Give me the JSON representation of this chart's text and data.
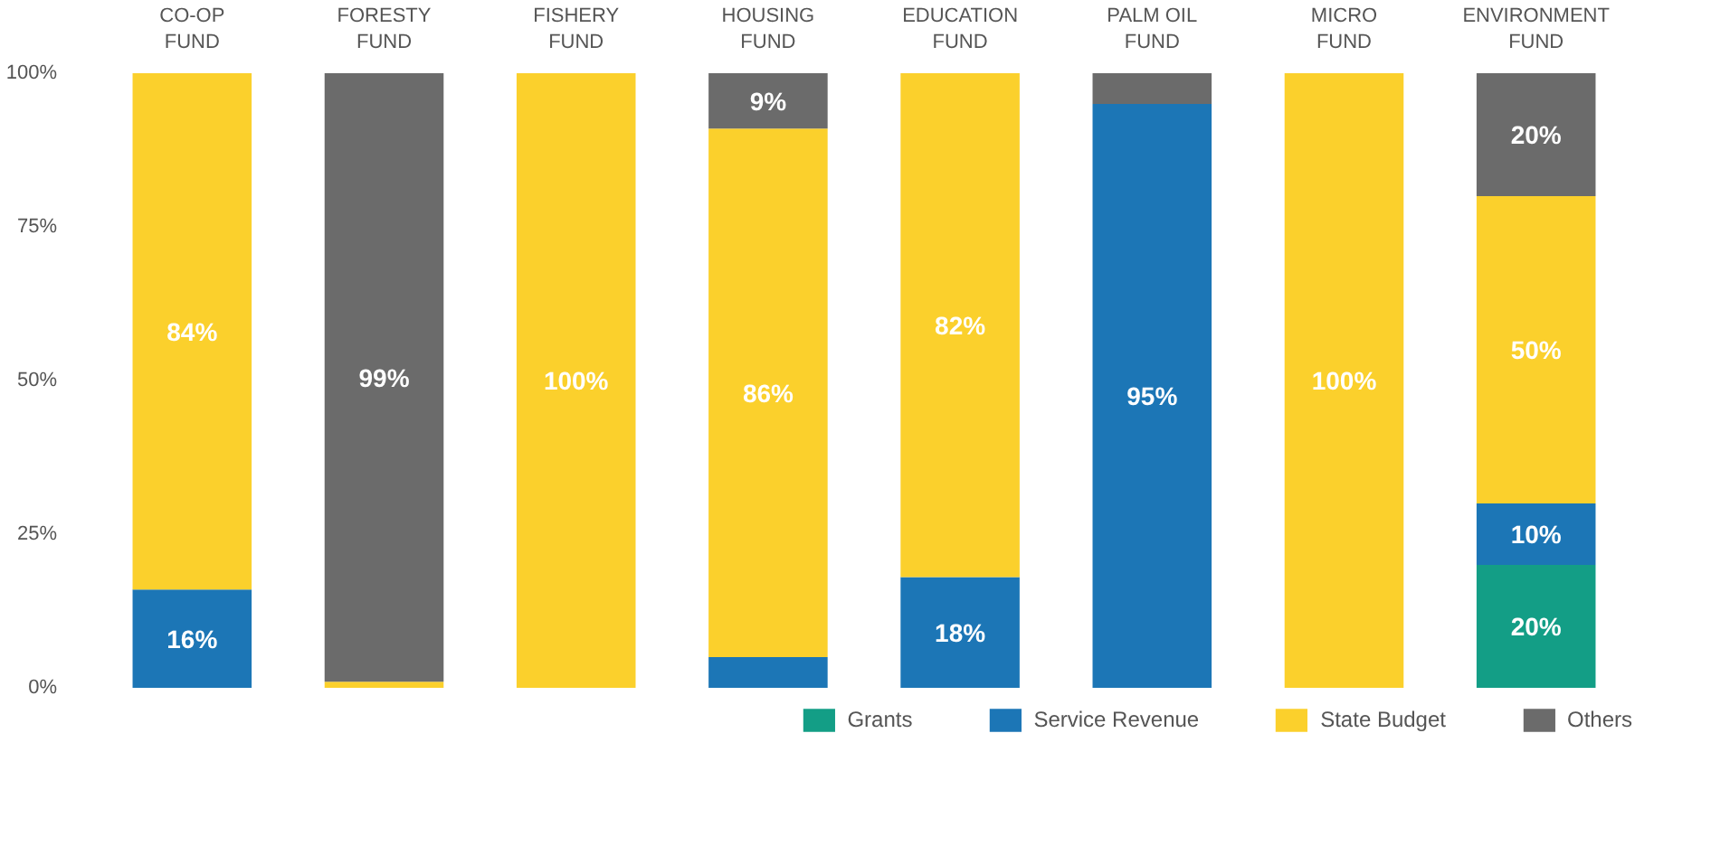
{
  "chart_data": {
    "type": "bar",
    "stacked": true,
    "categories": [
      "CO-OP FUND",
      "FORESTY FUND",
      "FISHERY FUND",
      "HOUSING FUND",
      "EDUCATION FUND",
      "PALM OIL FUND",
      "MICRO FUND",
      "ENVIRONMENT FUND"
    ],
    "series": [
      {
        "name": "Grants",
        "color": "#139e86",
        "values": [
          0,
          0,
          0,
          0,
          0,
          0,
          0,
          20
        ],
        "value_labels": [
          null,
          null,
          null,
          null,
          null,
          null,
          null,
          "20%"
        ]
      },
      {
        "name": "Service Revenue",
        "color": "#1c76b6",
        "values": [
          16,
          0,
          0,
          5,
          18,
          95,
          0,
          10
        ],
        "value_labels": [
          "16%",
          null,
          null,
          null,
          "18%",
          "95%",
          null,
          "10%"
        ]
      },
      {
        "name": "State Budget",
        "color": "#fbd02c",
        "values": [
          84,
          1,
          100,
          86,
          82,
          0,
          100,
          50
        ],
        "value_labels": [
          "84%",
          null,
          "100%",
          "86%",
          "82%",
          null,
          "100%",
          "50%"
        ]
      },
      {
        "name": "Others",
        "color": "#6b6b6b",
        "values": [
          0,
          99,
          0,
          9,
          0,
          5,
          0,
          20
        ],
        "value_labels": [
          null,
          "99%",
          null,
          "9%",
          null,
          null,
          null,
          "20%"
        ]
      }
    ],
    "ylim": [
      0,
      100
    ],
    "yticks": [
      {
        "value": 0,
        "label": "0%"
      },
      {
        "value": 25,
        "label": "25%"
      },
      {
        "value": 50,
        "label": "50%"
      },
      {
        "value": 75,
        "label": "75%"
      },
      {
        "value": 100,
        "label": "100%"
      }
    ],
    "grid": false,
    "legend": "bottom"
  }
}
